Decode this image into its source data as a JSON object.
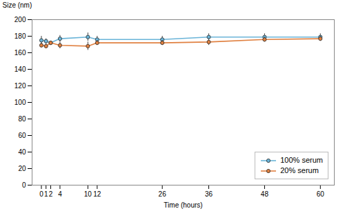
{
  "chart_data": {
    "type": "line",
    "xlabel": "Time (hours)",
    "ylabel": "Size (nm)",
    "x": [
      0,
      1,
      2,
      4,
      10,
      12,
      26,
      36,
      48,
      60
    ],
    "series": [
      {
        "name": "100% serum",
        "color": "#6ab4d8",
        "marker": "circle",
        "values": [
          175,
          174,
          172,
          177,
          179,
          176,
          176,
          179,
          179,
          179
        ],
        "errors": [
          5,
          3,
          2,
          4,
          5,
          4,
          4,
          4,
          4,
          4
        ]
      },
      {
        "name": "20% serum",
        "color": "#e08040",
        "marker": "circle",
        "values": [
          169,
          168,
          172,
          169,
          168,
          172,
          172,
          173,
          176,
          177
        ],
        "errors": [
          3,
          3,
          2,
          4,
          5,
          3,
          3,
          4,
          3,
          3
        ]
      }
    ],
    "xlim": [
      -2,
      63
    ],
    "xticks": [
      0,
      1,
      2,
      4,
      10,
      12,
      26,
      36,
      48,
      60
    ],
    "ylim": [
      0,
      200
    ],
    "yticks": [
      0,
      20,
      40,
      60,
      80,
      100,
      120,
      140,
      160,
      180,
      200
    ],
    "legend": "lower right"
  }
}
